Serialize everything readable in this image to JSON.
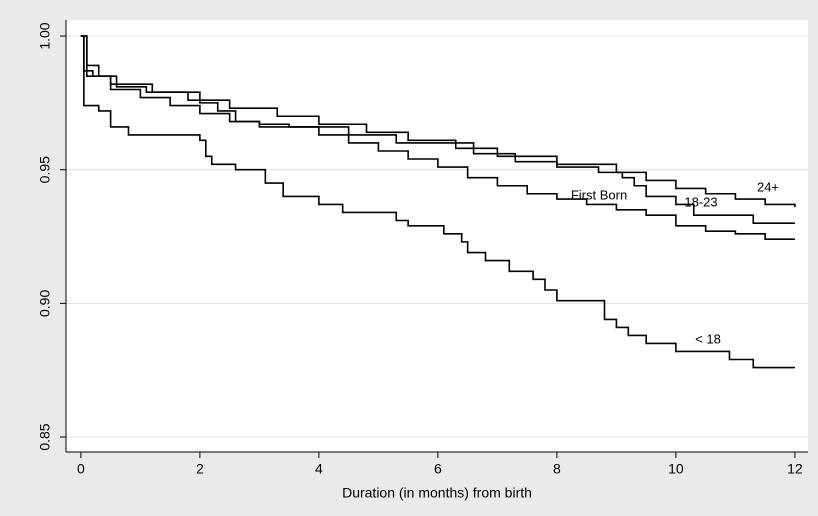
{
  "chart_data": {
    "type": "line",
    "step": "post",
    "xlabel": "Duration (in months) from birth",
    "xlim": [
      -0.25,
      12.22
    ],
    "ylim": [
      0.8444,
      1.006
    ],
    "xticks": [
      0,
      2,
      4,
      6,
      8,
      10,
      12
    ],
    "yticks": [
      {
        "value": 1,
        "label": "1.00"
      },
      0.95,
      {
        "value": 0.9,
        "label": "0.90"
      },
      0.85
    ],
    "grid": true,
    "series": [
      {
        "name": "< 18",
        "color": "#000000",
        "x": [
          0,
          0.05,
          0.3,
          0.5,
          0.8,
          2.0,
          2.1,
          2.2,
          2.6,
          3.1,
          3.4,
          4.0,
          4.4,
          5.3,
          5.5,
          6.1,
          6.4,
          6.5,
          6.8,
          7.2,
          7.6,
          7.8,
          8.0,
          8.8,
          9.0,
          9.2,
          9.5,
          10.0,
          10.9,
          11.3,
          12
        ],
        "values": [
          1.0,
          0.974,
          0.972,
          0.966,
          0.963,
          0.961,
          0.955,
          0.952,
          0.95,
          0.945,
          0.94,
          0.937,
          0.934,
          0.931,
          0.929,
          0.926,
          0.923,
          0.919,
          0.916,
          0.912,
          0.909,
          0.905,
          0.901,
          0.894,
          0.891,
          0.888,
          0.885,
          0.882,
          0.879,
          0.876,
          0.876
        ]
      },
      {
        "name": "First Born",
        "color": "#000000",
        "x": [
          0,
          0.05,
          0.2,
          0.5,
          1,
          1.5,
          2,
          2.5,
          3,
          4,
          4.5,
          5,
          5.5,
          6,
          6.5,
          7,
          7.5,
          8,
          8.5,
          9,
          9.5,
          10,
          10.5,
          11,
          11.5,
          12
        ],
        "values": [
          1.0,
          0.987,
          0.985,
          0.98,
          0.977,
          0.974,
          0.971,
          0.968,
          0.966,
          0.963,
          0.96,
          0.957,
          0.954,
          0.951,
          0.947,
          0.944,
          0.941,
          0.939,
          0.937,
          0.935,
          0.933,
          0.929,
          0.927,
          0.926,
          0.924,
          0.924
        ]
      },
      {
        "name": "24+",
        "color": "#000000",
        "x": [
          0,
          0.1,
          0.5,
          1.2,
          1.8,
          2.5,
          3.3,
          4,
          4.8,
          5.5,
          6.3,
          7,
          8,
          9,
          9.5,
          10,
          10.5,
          11,
          11.5,
          12
        ],
        "values": [
          1.0,
          0.985,
          0.982,
          0.979,
          0.976,
          0.973,
          0.97,
          0.967,
          0.964,
          0.961,
          0.958,
          0.955,
          0.952,
          0.949,
          0.946,
          0.943,
          0.941,
          0.939,
          0.937,
          0.936
        ]
      },
      {
        "name": "18-23",
        "color": "#000000",
        "x": [
          0,
          0.1,
          0.3,
          0.6,
          1.1,
          2.0,
          2.3,
          2.6,
          3,
          3.5,
          4.5,
          5.3,
          6.6,
          7.3,
          8.0,
          8.7,
          9.1,
          9.3,
          9.5,
          10,
          10.3,
          11.3,
          12
        ],
        "values": [
          1.0,
          0.989,
          0.985,
          0.981,
          0.979,
          0.975,
          0.972,
          0.968,
          0.967,
          0.966,
          0.963,
          0.96,
          0.956,
          0.953,
          0.951,
          0.949,
          0.947,
          0.944,
          0.94,
          0.937,
          0.933,
          0.93,
          0.93
        ]
      }
    ]
  }
}
